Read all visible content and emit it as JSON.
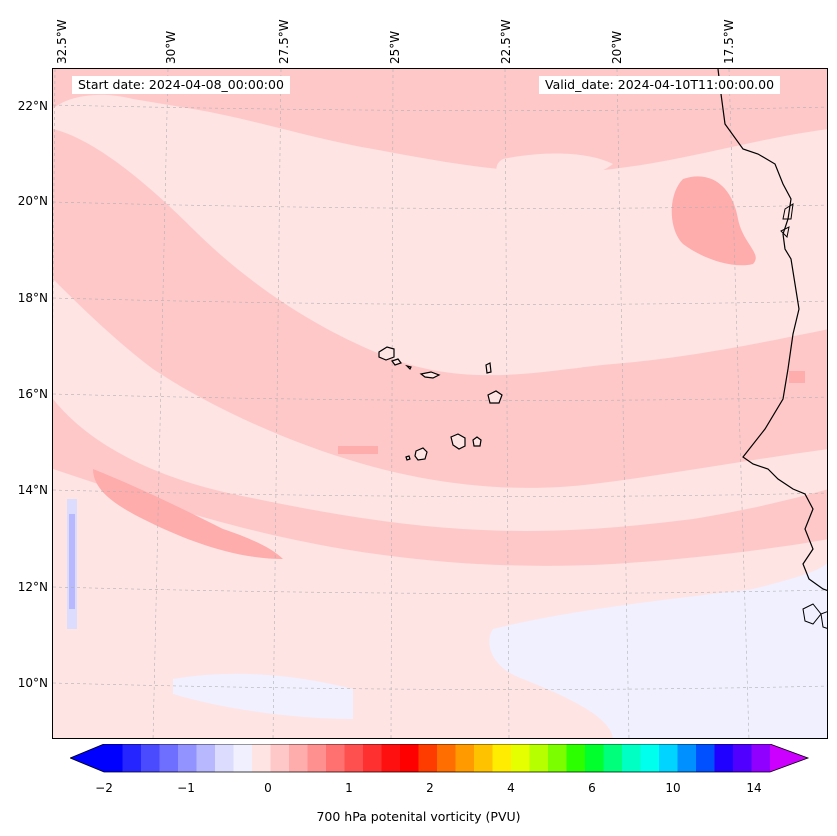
{
  "map": {
    "start_date": "Start date: 2024-04-08_00:00:00",
    "valid_date": "Valid_date: 2024-04-10T11:00:00.00",
    "lat_labels": [
      "22°N",
      "20°N",
      "18°N",
      "16°N",
      "14°N",
      "12°N",
      "10°N"
    ],
    "lon_labels": [
      "32.5°W",
      "30°W",
      "27.5°W",
      "25°W",
      "22.5°W",
      "20°W",
      "17.5°W"
    ],
    "background_color": "#ffe4e4",
    "coastline_color": "#000000",
    "gridline_color": "#b0b0b0"
  },
  "colorbar": {
    "title": "700 hPa potenital vorticity (PVU)",
    "tick_labels": [
      "−2",
      "−1",
      "0",
      "1",
      "2",
      "4",
      "6",
      "10",
      "14"
    ],
    "colors": [
      "#0000ff",
      "#2525ff",
      "#4a4aff",
      "#6e6eff",
      "#9393ff",
      "#b8b8ff",
      "#dcdcff",
      "#f0f0ff",
      "#ffe4e4",
      "#ffc8c8",
      "#ffacac",
      "#ff9090",
      "#ff7070",
      "#ff5050",
      "#ff3030",
      "#ff1010",
      "#ff0000",
      "#ff3c00",
      "#ff6e00",
      "#ff9b00",
      "#ffc200",
      "#ffec00",
      "#e6ff00",
      "#b5ff00",
      "#7bff00",
      "#2cff00",
      "#00ff2c",
      "#00ff7b",
      "#00ffc2",
      "#00ffec",
      "#00d4ff",
      "#0090ff",
      "#0050ff",
      "#2000ff",
      "#5000ff",
      "#9000ff"
    ],
    "extend_min_color": "#0000ff",
    "extend_max_color": "#cc00ff"
  }
}
